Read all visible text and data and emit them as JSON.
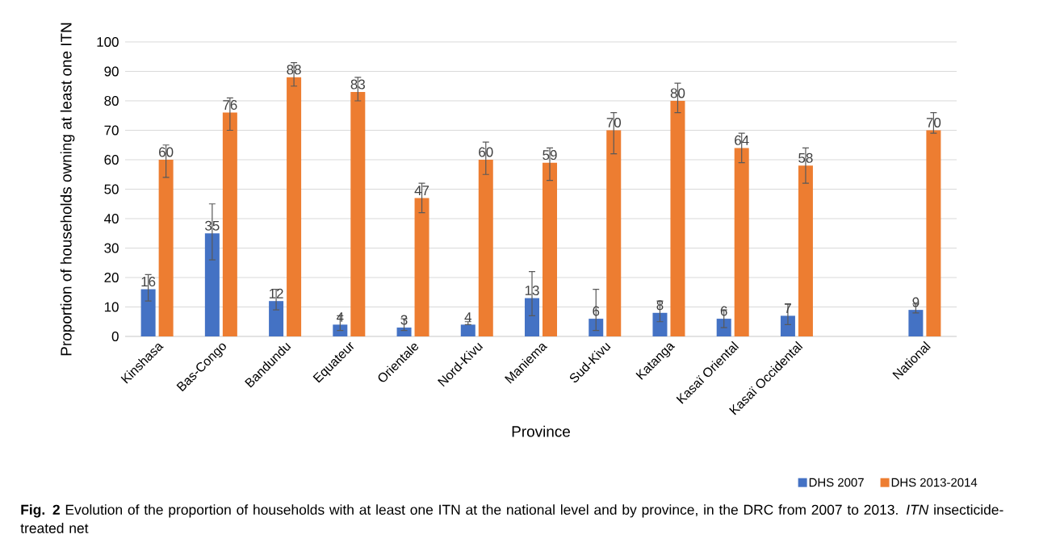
{
  "chart_data": {
    "type": "bar",
    "xlabel": "Province",
    "ylabel": "Proportion of households owning at least one ITN",
    "categories": [
      "Kinshasa",
      "Bas-Congo",
      "Bandundu",
      "Equateur",
      "Orientale",
      "Nord-Kivu",
      "Maniema",
      "Sud-Kivu",
      "Katanga",
      "Kasaï Oriental",
      "Kasaï Occidental",
      null,
      "National"
    ],
    "series": [
      {
        "name": "DHS 2007",
        "color": "#4472c4",
        "values": [
          16,
          35,
          12,
          4,
          3,
          4,
          13,
          6,
          8,
          6,
          7,
          null,
          9
        ],
        "errors": [
          [
            12,
            21
          ],
          [
            26,
            45
          ],
          [
            9,
            16
          ],
          [
            2,
            7
          ],
          [
            2,
            6
          ],
          [
            4,
            5
          ],
          [
            7,
            22
          ],
          [
            2,
            16
          ],
          [
            5,
            12
          ],
          [
            3,
            9
          ],
          [
            4,
            11
          ],
          null,
          [
            8,
            11
          ]
        ]
      },
      {
        "name": "DHS 2013-2014",
        "color": "#ed7d31",
        "values": [
          60,
          76,
          88,
          83,
          47,
          60,
          59,
          70,
          80,
          64,
          58,
          null,
          70
        ],
        "errors": [
          [
            54,
            65
          ],
          [
            70,
            81
          ],
          [
            85,
            93
          ],
          [
            80,
            88
          ],
          [
            42,
            52
          ],
          [
            55,
            66
          ],
          [
            53,
            64
          ],
          [
            62,
            76
          ],
          [
            76,
            86
          ],
          [
            59,
            69
          ],
          [
            52,
            64
          ],
          null,
          [
            69,
            76
          ]
        ]
      }
    ],
    "ylim": [
      0,
      100
    ],
    "yticks": [
      0,
      10,
      20,
      30,
      40,
      50,
      60,
      70,
      80,
      90,
      100
    ],
    "grid": "y",
    "legend": "bottom right",
    "data_labels": true,
    "annotations": [
      "**Fig. 2** Evolution of the proportion of households with at least one ITN at the national level and by province, in the DRC from 2007 to 2013. *ITN* insecticide-treated net"
    ]
  }
}
